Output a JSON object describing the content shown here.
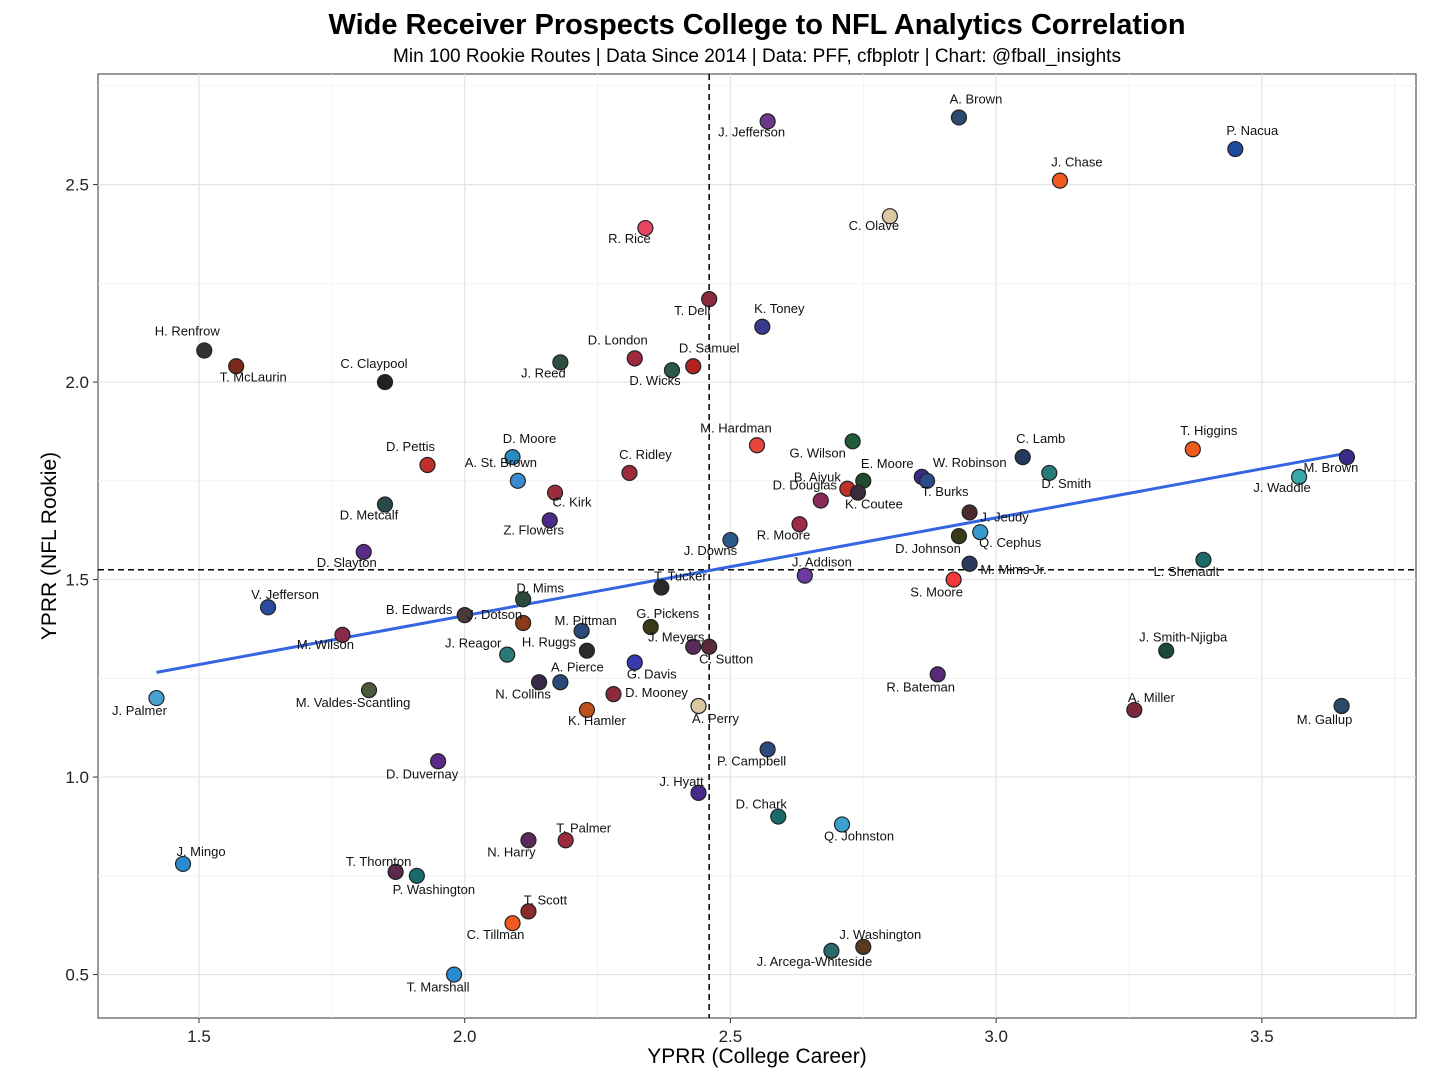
{
  "chart_data": {
    "type": "scatter",
    "title": "Wide Receiver Prospects College to NFL Analytics Correlation",
    "subtitle": "Min 100 Rookie Routes | Data Since 2014 | Data: PFF, cfbplotr | Chart: @fball_insights",
    "xlabel": "YPRR (College Career)",
    "ylabel": "YPRR (NFL Rookie)",
    "xlim": [
      1.31,
      3.79
    ],
    "ylim": [
      0.39,
      2.78
    ],
    "xticks": [
      "1.5",
      "2.0",
      "2.5",
      "3.0",
      "3.5"
    ],
    "yticks": [
      "0.5",
      "1.0",
      "1.5",
      "2.0",
      "2.5"
    ],
    "grid": true,
    "vline_x": 2.46,
    "hline_y": 1.525,
    "trend_line": {
      "x": [
        1.42,
        3.66
      ],
      "y": [
        1.265,
        1.82
      ],
      "color": "#3366e0"
    },
    "points": [
      {
        "name": "A. Brown",
        "x": 2.93,
        "y": 2.67,
        "color": "#2b4a6e"
      },
      {
        "name": "J. Jefferson",
        "x": 2.57,
        "y": 2.66,
        "color": "#6b3a8a"
      },
      {
        "name": "P. Nacua",
        "x": 3.45,
        "y": 2.59,
        "color": "#1d4a9e"
      },
      {
        "name": "J. Chase",
        "x": 3.12,
        "y": 2.51,
        "color": "#f05a1e"
      },
      {
        "name": "C. Olave",
        "x": 2.8,
        "y": 2.42,
        "color": "#d9c8a0"
      },
      {
        "name": "R. Rice",
        "x": 2.34,
        "y": 2.39,
        "color": "#e84560"
      },
      {
        "name": "T. Dell",
        "x": 2.46,
        "y": 2.21,
        "color": "#8a2a3a"
      },
      {
        "name": "K. Toney",
        "x": 2.56,
        "y": 2.14,
        "color": "#3a3a8a"
      },
      {
        "name": "H. Renfrow",
        "x": 1.51,
        "y": 2.08,
        "color": "#333333"
      },
      {
        "name": "T. McLaurin",
        "x": 1.57,
        "y": 2.04,
        "color": "#7a2a1a"
      },
      {
        "name": "C. Claypool",
        "x": 1.85,
        "y": 2.0,
        "color": "#222222"
      },
      {
        "name": "J. Reed",
        "x": 2.18,
        "y": 2.05,
        "color": "#2f4f3f"
      },
      {
        "name": "D. London",
        "x": 2.32,
        "y": 2.06,
        "color": "#9e2a3e"
      },
      {
        "name": "D. Samuel",
        "x": 2.43,
        "y": 2.04,
        "color": "#b22222"
      },
      {
        "name": "D. Wicks",
        "x": 2.39,
        "y": 2.03,
        "color": "#2a5a4a"
      },
      {
        "name": "M. Hardman",
        "x": 2.55,
        "y": 1.84,
        "color": "#e8453c"
      },
      {
        "name": "G. Wilson",
        "x": 2.73,
        "y": 1.85,
        "color": "#1f5a3a"
      },
      {
        "name": "C. Lamb",
        "x": 3.05,
        "y": 1.81,
        "color": "#23395d"
      },
      {
        "name": "T. Higgins",
        "x": 3.37,
        "y": 1.83,
        "color": "#f05a1e"
      },
      {
        "name": "D. Pettis",
        "x": 1.93,
        "y": 1.79,
        "color": "#c0302a"
      },
      {
        "name": "D. Moore",
        "x": 2.09,
        "y": 1.81,
        "color": "#2a8ac0"
      },
      {
        "name": "A. St. Brown",
        "x": 2.1,
        "y": 1.75,
        "color": "#3a8ad0"
      },
      {
        "name": "C. Ridley",
        "x": 2.31,
        "y": 1.77,
        "color": "#9e2a3e"
      },
      {
        "name": "E. Moore",
        "x": 2.75,
        "y": 1.75,
        "color": "#1f4a2f"
      },
      {
        "name": "W. Robinson",
        "x": 2.86,
        "y": 1.76,
        "color": "#3a2a8a"
      },
      {
        "name": "D. Smith",
        "x": 3.1,
        "y": 1.77,
        "color": "#2a7a7a"
      },
      {
        "name": "M. Brown",
        "x": 3.66,
        "y": 1.81,
        "color": "#3a2a8a"
      },
      {
        "name": "J. Waddle",
        "x": 3.57,
        "y": 1.76,
        "color": "#3aa8a8"
      },
      {
        "name": "B. Aiyuk",
        "x": 2.72,
        "y": 1.73,
        "color": "#c0302a"
      },
      {
        "name": "K. Coutee",
        "x": 2.74,
        "y": 1.72,
        "color": "#3a2a3a"
      },
      {
        "name": "T. Burks",
        "x": 2.87,
        "y": 1.75,
        "color": "#2a4a8a"
      },
      {
        "name": "C. Kirk",
        "x": 2.17,
        "y": 1.72,
        "color": "#9e2a3e"
      },
      {
        "name": "D. Metcalf",
        "x": 1.85,
        "y": 1.69,
        "color": "#2a4a4a"
      },
      {
        "name": "Z. Flowers",
        "x": 2.16,
        "y": 1.65,
        "color": "#4a2a8a"
      },
      {
        "name": "D. Douglas",
        "x": 2.67,
        "y": 1.7,
        "color": "#8a2a5a"
      },
      {
        "name": "R. Moore",
        "x": 2.63,
        "y": 1.64,
        "color": "#9e2a4a"
      },
      {
        "name": "J. Jeudy",
        "x": 2.95,
        "y": 1.67,
        "color": "#4a2a2a"
      },
      {
        "name": "Q. Cephus",
        "x": 2.97,
        "y": 1.62,
        "color": "#3a9ad0"
      },
      {
        "name": "D. Johnson",
        "x": 2.93,
        "y": 1.61,
        "color": "#3a3a1a"
      },
      {
        "name": "J. Downs",
        "x": 2.5,
        "y": 1.6,
        "color": "#2a5a8a"
      },
      {
        "name": "D. Slayton",
        "x": 1.81,
        "y": 1.57,
        "color": "#5a2a8a"
      },
      {
        "name": "M. Mims Jr.",
        "x": 2.95,
        "y": 1.54,
        "color": "#2a3a5a"
      },
      {
        "name": "L. Shenault",
        "x": 3.39,
        "y": 1.55,
        "color": "#1a6a6a"
      },
      {
        "name": "J. Addison",
        "x": 2.64,
        "y": 1.51,
        "color": "#6a3aa0"
      },
      {
        "name": "S. Moore",
        "x": 2.92,
        "y": 1.5,
        "color": "#f03a3a"
      },
      {
        "name": "T. Tucker",
        "x": 2.37,
        "y": 1.48,
        "color": "#2a2a2a"
      },
      {
        "name": "D. Mims",
        "x": 2.11,
        "y": 1.45,
        "color": "#2a4a3a"
      },
      {
        "name": "V. Jefferson",
        "x": 1.63,
        "y": 1.43,
        "color": "#2a4a9e"
      },
      {
        "name": "J. Dotson",
        "x": 2.0,
        "y": 1.41,
        "color": "#4a3a3a"
      },
      {
        "name": "B. Edwards",
        "x": 2.11,
        "y": 1.39,
        "color": "#8a3a1a"
      },
      {
        "name": "M. Pittman",
        "x": 2.22,
        "y": 1.37,
        "color": "#2a4a7a"
      },
      {
        "name": "G. Pickens",
        "x": 2.35,
        "y": 1.38,
        "color": "#3a3a1a"
      },
      {
        "name": "M. Wilson",
        "x": 1.77,
        "y": 1.36,
        "color": "#8a2a4a"
      },
      {
        "name": "J. Meyers",
        "x": 2.43,
        "y": 1.33,
        "color": "#5a2a5a"
      },
      {
        "name": "C. Sutton",
        "x": 2.46,
        "y": 1.33,
        "color": "#5a2a3a"
      },
      {
        "name": "H. Ruggs",
        "x": 2.23,
        "y": 1.32,
        "color": "#2a2a2a"
      },
      {
        "name": "J. Reagor",
        "x": 2.08,
        "y": 1.31,
        "color": "#2a7a7a"
      },
      {
        "name": "G. Davis",
        "x": 2.32,
        "y": 1.29,
        "color": "#3a3ab0"
      },
      {
        "name": "J. Smith-Njigba",
        "x": 3.32,
        "y": 1.32,
        "color": "#1a4a3a"
      },
      {
        "name": "R. Bateman",
        "x": 2.89,
        "y": 1.26,
        "color": "#5a2a7a"
      },
      {
        "name": "A. Pierce",
        "x": 2.18,
        "y": 1.24,
        "color": "#2a4a7a"
      },
      {
        "name": "N. Collins",
        "x": 2.14,
        "y": 1.24,
        "color": "#3a2a4a"
      },
      {
        "name": "M. Valdes-Scantling",
        "x": 1.82,
        "y": 1.22,
        "color": "#4a5a3a"
      },
      {
        "name": "D. Mooney",
        "x": 2.28,
        "y": 1.21,
        "color": "#8a2a3a"
      },
      {
        "name": "J. Palmer",
        "x": 1.42,
        "y": 1.2,
        "color": "#4aa0d0"
      },
      {
        "name": "A. Perry",
        "x": 2.44,
        "y": 1.18,
        "color": "#d9c8a0"
      },
      {
        "name": "K. Hamler",
        "x": 2.23,
        "y": 1.17,
        "color": "#c0501a"
      },
      {
        "name": "A. Miller",
        "x": 3.26,
        "y": 1.17,
        "color": "#7a2a3a"
      },
      {
        "name": "M. Gallup",
        "x": 3.65,
        "y": 1.18,
        "color": "#2a4a6a"
      },
      {
        "name": "P. Campbell",
        "x": 2.57,
        "y": 1.07,
        "color": "#2a4a7a"
      },
      {
        "name": "D. Duvernay",
        "x": 1.95,
        "y": 1.04,
        "color": "#5a2a8a"
      },
      {
        "name": "J. Hyatt",
        "x": 2.44,
        "y": 0.96,
        "color": "#4a2a8a"
      },
      {
        "name": "D. Chark",
        "x": 2.59,
        "y": 0.9,
        "color": "#1a6a6a"
      },
      {
        "name": "Q. Johnston",
        "x": 2.71,
        "y": 0.88,
        "color": "#3aa0d0"
      },
      {
        "name": "T. Palmer",
        "x": 2.19,
        "y": 0.84,
        "color": "#9e2a3e"
      },
      {
        "name": "N. Harry",
        "x": 2.12,
        "y": 0.84,
        "color": "#5a2a5a"
      },
      {
        "name": "J. Mingo",
        "x": 1.47,
        "y": 0.78,
        "color": "#2a8ad0"
      },
      {
        "name": "T. Thornton",
        "x": 1.87,
        "y": 0.76,
        "color": "#5a2a4a"
      },
      {
        "name": "P. Washington",
        "x": 1.91,
        "y": 0.75,
        "color": "#1a6a6a"
      },
      {
        "name": "T. Scott",
        "x": 2.12,
        "y": 0.66,
        "color": "#8a2a2a"
      },
      {
        "name": "C. Tillman",
        "x": 2.09,
        "y": 0.63,
        "color": "#f05a1e"
      },
      {
        "name": "J. Washington",
        "x": 2.75,
        "y": 0.57,
        "color": "#5a3a1a"
      },
      {
        "name": "J. Arcega-Whiteside",
        "x": 2.69,
        "y": 0.56,
        "color": "#2a6a6a"
      },
      {
        "name": "T. Marshall",
        "x": 1.98,
        "y": 0.5,
        "color": "#2a8ad0"
      }
    ]
  }
}
